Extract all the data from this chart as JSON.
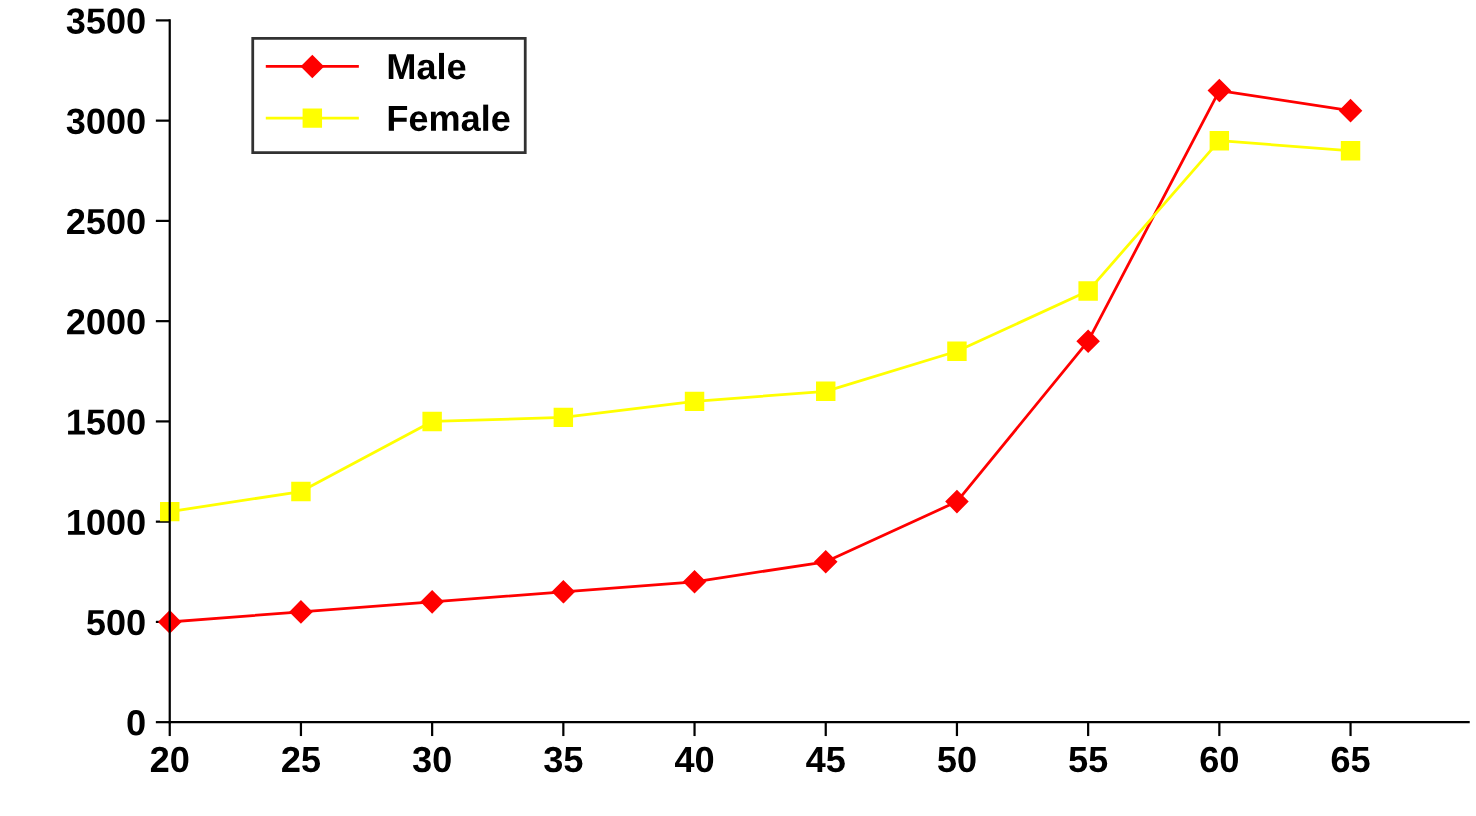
{
  "chart_data": {
    "type": "line",
    "x": [
      20,
      25,
      30,
      35,
      40,
      45,
      50,
      55,
      60,
      65
    ],
    "series": [
      {
        "name": "Male",
        "color": "#ff0000",
        "marker": "diamond",
        "values": [
          500,
          550,
          600,
          650,
          700,
          800,
          1100,
          1900,
          3150,
          3050
        ]
      },
      {
        "name": "Female",
        "color": "#ffff00",
        "marker": "square",
        "values": [
          1050,
          1150,
          1500,
          1520,
          1600,
          1650,
          1850,
          2150,
          2900,
          2850
        ]
      }
    ],
    "xlim": [
      20,
      69.5
    ],
    "xticks": [
      20,
      25,
      30,
      35,
      40,
      45,
      50,
      55,
      60,
      65
    ],
    "ylim": [
      0,
      3500
    ],
    "yticks": [
      0,
      500,
      1000,
      1500,
      2000,
      2500,
      3000,
      3500
    ],
    "grid": false,
    "legend": "top left",
    "line_style": "solid"
  }
}
